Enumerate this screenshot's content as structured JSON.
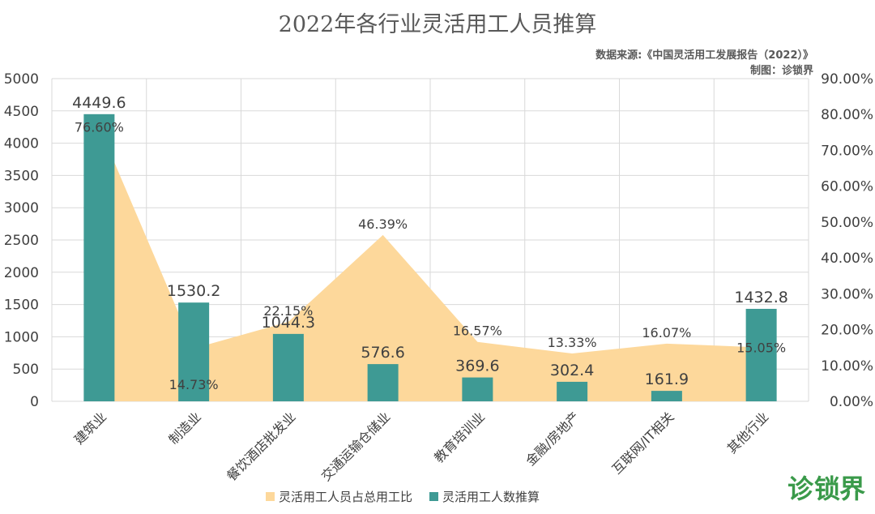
{
  "header": {
    "title": "2022年各行业灵活用工人员推算",
    "source": "数据来源:《中国灵活用工发展报告（2022）》",
    "credit": "制图：诊锁界"
  },
  "logo_text": "诊锁界",
  "colors": {
    "bar": "#3e9a94",
    "area": "#fdd89b",
    "grid": "#d9d9d9",
    "text": "#404040",
    "logo": "#3a9a4a"
  },
  "chart_data": {
    "type": "bar",
    "title": "2022年各行业灵活用工人员推算",
    "categories": [
      "建筑业",
      "制造业",
      "餐饮酒店批发业",
      "交通运输仓储业",
      "教育培训业",
      "金融/房地产",
      "互联网/IT相关",
      "其他行业"
    ],
    "series": [
      {
        "name": "灵活用工人员占总用工比",
        "type": "area",
        "axis": "right",
        "values": [
          76.6,
          14.73,
          22.15,
          46.39,
          16.57,
          13.33,
          16.07,
          15.05
        ],
        "labels": [
          "76.60%",
          "14.73%",
          "22.15%",
          "46.39%",
          "16.57%",
          "13.33%",
          "16.07%",
          "15.05%"
        ]
      },
      {
        "name": "灵活用工人数推算",
        "type": "bar",
        "axis": "left",
        "values": [
          4449.6,
          1530.2,
          1044.3,
          576.6,
          369.6,
          302.4,
          161.9,
          1432.8
        ],
        "labels": [
          "4449.6",
          "1530.2",
          "1044.3",
          "576.6",
          "369.6",
          "302.4",
          "161.9",
          "1432.8"
        ]
      }
    ],
    "y_left": {
      "lim": [
        0,
        5000
      ],
      "ticks": [
        "0",
        "500",
        "1000",
        "1500",
        "2000",
        "2500",
        "3000",
        "3500",
        "4000",
        "4500",
        "5000"
      ]
    },
    "y_right": {
      "lim": [
        0,
        90
      ],
      "ticks": [
        "0.00%",
        "10.00%",
        "20.00%",
        "30.00%",
        "40.00%",
        "50.00%",
        "60.00%",
        "70.00%",
        "80.00%",
        "90.00%"
      ]
    },
    "grid": true,
    "legend": "bottom"
  }
}
